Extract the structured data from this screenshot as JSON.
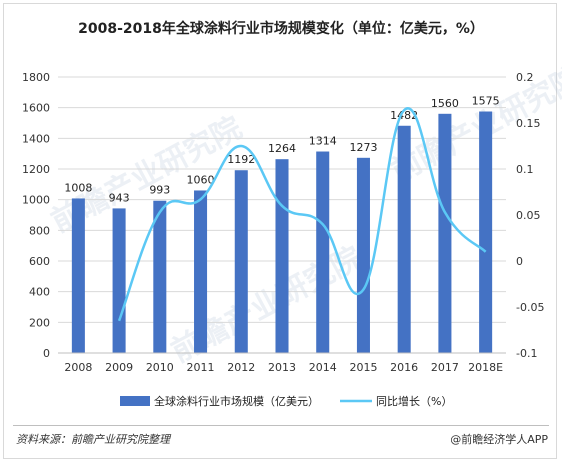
{
  "title": "2008-2018年全球涂料行业市场规模变化（单位：亿美元，%）",
  "source": "资料来源：前瞻产业研究院整理",
  "brand": "@前瞻经济学人APP",
  "watermark": "前瞻产业研究院",
  "colors": {
    "bar": "#4472c4",
    "line": "#5bc8f5",
    "grid": "#d9d9d9",
    "axis_text": "#333333"
  },
  "chart_data": {
    "type": "bar",
    "categories": [
      "2008",
      "2009",
      "2010",
      "2011",
      "2012",
      "2013",
      "2014",
      "2015",
      "2016",
      "2017",
      "2018E"
    ],
    "series": [
      {
        "name": "全球涂料行业市场规模（亿美元）",
        "type": "bar",
        "axis": "left",
        "values": [
          1008,
          943,
          993,
          1060,
          1192,
          1264,
          1314,
          1273,
          1482,
          1560,
          1575
        ],
        "data_labels": [
          "1008",
          "943",
          "993",
          "1060",
          "1192",
          "1264",
          "1314",
          "1273",
          "1482",
          "1560",
          "1575"
        ]
      },
      {
        "name": "同比增长（%）",
        "type": "line",
        "axis": "right",
        "smooth": true,
        "values": [
          null,
          -0.065,
          0.053,
          0.067,
          0.125,
          0.06,
          0.04,
          -0.031,
          0.164,
          0.053,
          0.01
        ]
      }
    ],
    "ylim_left": [
      0,
      1800
    ],
    "yticks_left": [
      "0",
      "200",
      "400",
      "600",
      "800",
      "1000",
      "1200",
      "1400",
      "1600",
      "1800"
    ],
    "ylim_right": [
      -0.1,
      0.2
    ],
    "yticks_right": [
      "-0.1",
      "-0.05",
      "0",
      "0.05",
      "0.1",
      "0.15",
      "0.2"
    ],
    "grid": true,
    "legend_position": "bottom"
  }
}
